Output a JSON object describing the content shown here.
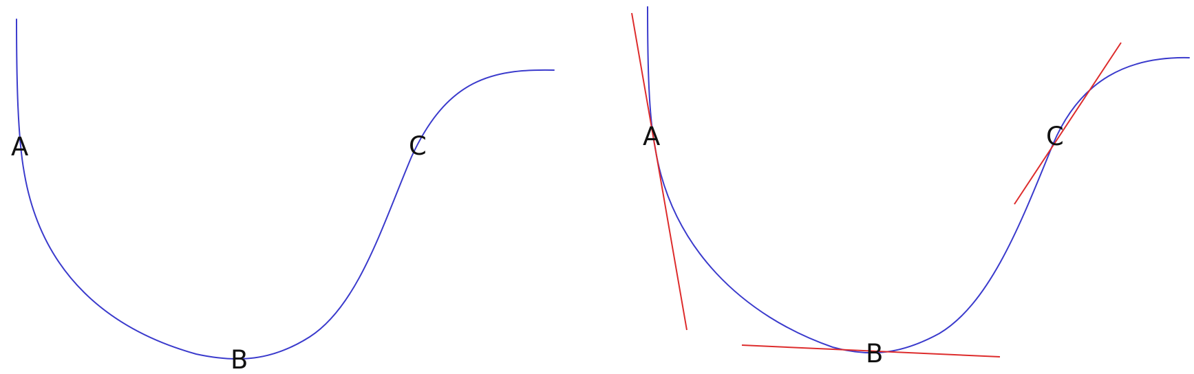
{
  "colors": {
    "curve": "#3a3acc",
    "tangent": "#dd2b2b",
    "label": "#111111",
    "background": "#ffffff"
  },
  "panels": [
    {
      "id": "left",
      "labels": [
        "A",
        "B",
        "C"
      ],
      "has_tangents": false
    },
    {
      "id": "right",
      "labels": [
        "A",
        "B",
        "C"
      ],
      "has_tangents": true
    }
  ]
}
